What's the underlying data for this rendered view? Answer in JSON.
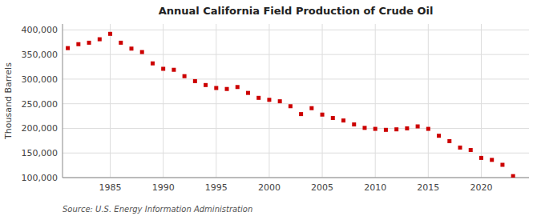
{
  "chart_data": {
    "type": "scatter",
    "title": "Annual California Field Production of Crude Oil",
    "ylabel": "Thousand Barrels",
    "annotations": [
      "Source: U.S. Energy Information Administration"
    ],
    "color": "#cc0000",
    "marker": "square",
    "grid": true,
    "ylim": [
      100000,
      412000
    ],
    "yticks": [
      {
        "value": 100000,
        "label": "100,000"
      },
      {
        "value": 150000,
        "label": "150,000"
      },
      {
        "value": 200000,
        "label": "200,000"
      },
      {
        "value": 250000,
        "label": "250,000"
      },
      {
        "value": 300000,
        "label": "300,000"
      },
      {
        "value": 350000,
        "label": "350,000"
      },
      {
        "value": 400000,
        "label": "400,000"
      }
    ],
    "xlim": [
      1980.5,
      2024.5
    ],
    "xticks": [
      1985,
      1990,
      1995,
      2000,
      2005,
      2010,
      2015,
      2020
    ],
    "x": [
      1981,
      1982,
      1983,
      1984,
      1985,
      1986,
      1987,
      1988,
      1989,
      1990,
      1991,
      1992,
      1993,
      1994,
      1995,
      1996,
      1997,
      1998,
      1999,
      2000,
      2001,
      2002,
      2003,
      2004,
      2005,
      2006,
      2007,
      2008,
      2009,
      2010,
      2011,
      2012,
      2013,
      2014,
      2015,
      2016,
      2017,
      2018,
      2019,
      2020,
      2021,
      2022,
      2023
    ],
    "values": [
      363000,
      371000,
      374000,
      381000,
      392000,
      374000,
      362000,
      355000,
      332000,
      321000,
      319000,
      306000,
      296000,
      288000,
      282000,
      280000,
      284000,
      272000,
      262000,
      258000,
      255000,
      245000,
      229000,
      241000,
      228000,
      221000,
      216000,
      208000,
      201000,
      199000,
      197000,
      198000,
      200000,
      204000,
      199000,
      185000,
      174000,
      161000,
      156000,
      140000,
      136000,
      126000,
      103000
    ]
  }
}
